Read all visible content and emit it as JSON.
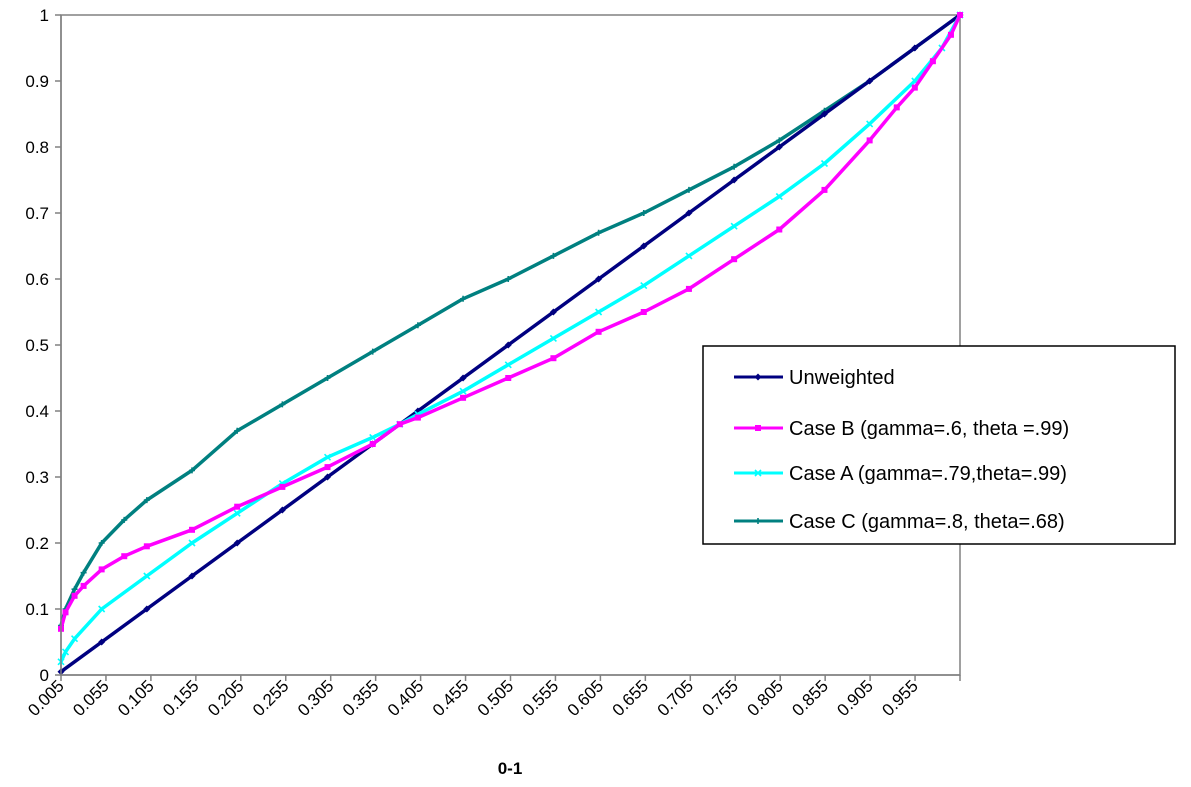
{
  "chart_data": {
    "type": "line",
    "title": "",
    "xlabel": "0-1",
    "ylabel": "",
    "xlim": [
      0.005,
      1.0
    ],
    "ylim": [
      0,
      1
    ],
    "x_tick_labels": [
      "0.005",
      "0.055",
      "0.105",
      "0.155",
      "0.205",
      "0.255",
      "0.305",
      "0.355",
      "0.405",
      "0.455",
      "0.505",
      "0.555",
      "0.605",
      "0.655",
      "0.705",
      "0.755",
      "0.805",
      "0.855",
      "0.905",
      "0.955"
    ],
    "y_tick_labels": [
      "0",
      "0.1",
      "0.2",
      "0.3",
      "0.4",
      "0.5",
      "0.6",
      "0.7",
      "0.8",
      "0.9",
      "1"
    ],
    "grid": false,
    "legend_position": "right",
    "series": [
      {
        "name": "Unweighted",
        "color": "#000080",
        "marker": "diamond",
        "x": [
          0.005,
          0.05,
          0.1,
          0.15,
          0.2,
          0.25,
          0.3,
          0.35,
          0.4,
          0.45,
          0.5,
          0.55,
          0.6,
          0.65,
          0.7,
          0.75,
          0.8,
          0.85,
          0.9,
          0.95,
          1.0
        ],
        "y": [
          0.005,
          0.05,
          0.1,
          0.15,
          0.2,
          0.25,
          0.3,
          0.35,
          0.4,
          0.45,
          0.5,
          0.55,
          0.6,
          0.65,
          0.7,
          0.75,
          0.8,
          0.85,
          0.9,
          0.95,
          1.0
        ]
      },
      {
        "name": "Case B (gamma=.6, theta =.99)",
        "color": "#FF00FF",
        "marker": "square",
        "x": [
          0.005,
          0.01,
          0.02,
          0.03,
          0.05,
          0.075,
          0.1,
          0.15,
          0.2,
          0.25,
          0.3,
          0.35,
          0.38,
          0.4,
          0.45,
          0.5,
          0.55,
          0.6,
          0.65,
          0.7,
          0.75,
          0.8,
          0.85,
          0.9,
          0.93,
          0.95,
          0.97,
          0.99,
          1.0
        ],
        "y": [
          0.07,
          0.095,
          0.12,
          0.135,
          0.16,
          0.18,
          0.195,
          0.22,
          0.255,
          0.285,
          0.315,
          0.35,
          0.38,
          0.39,
          0.42,
          0.45,
          0.48,
          0.52,
          0.55,
          0.585,
          0.63,
          0.675,
          0.735,
          0.81,
          0.86,
          0.89,
          0.93,
          0.97,
          1.0
        ]
      },
      {
        "name": "Case A (gamma=.79,theta=.99)",
        "color": "#00FFFF",
        "marker": "x",
        "x": [
          0.005,
          0.01,
          0.02,
          0.05,
          0.1,
          0.15,
          0.2,
          0.25,
          0.3,
          0.35,
          0.38,
          0.4,
          0.45,
          0.5,
          0.55,
          0.6,
          0.65,
          0.7,
          0.75,
          0.8,
          0.85,
          0.9,
          0.95,
          0.98,
          1.0
        ],
        "y": [
          0.02,
          0.035,
          0.055,
          0.1,
          0.15,
          0.2,
          0.245,
          0.29,
          0.33,
          0.36,
          0.38,
          0.395,
          0.43,
          0.47,
          0.51,
          0.55,
          0.59,
          0.635,
          0.68,
          0.725,
          0.775,
          0.835,
          0.9,
          0.95,
          1.0
        ]
      },
      {
        "name": "Case C (gamma=.8, theta=.68)",
        "color": "#008080",
        "marker": "plus",
        "x": [
          0.005,
          0.01,
          0.02,
          0.03,
          0.05,
          0.075,
          0.1,
          0.15,
          0.2,
          0.25,
          0.3,
          0.35,
          0.4,
          0.45,
          0.5,
          0.55,
          0.6,
          0.65,
          0.7,
          0.75,
          0.8,
          0.85,
          0.9,
          0.95,
          1.0
        ],
        "y": [
          0.075,
          0.1,
          0.13,
          0.155,
          0.2,
          0.235,
          0.265,
          0.31,
          0.37,
          0.41,
          0.45,
          0.49,
          0.53,
          0.57,
          0.6,
          0.635,
          0.67,
          0.7,
          0.735,
          0.77,
          0.81,
          0.855,
          0.9,
          0.95,
          1.0
        ]
      }
    ]
  }
}
